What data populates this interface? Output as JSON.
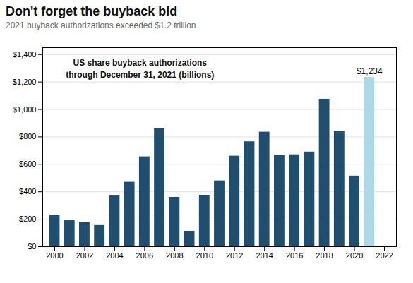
{
  "chart_data": {
    "type": "bar",
    "title": "Don't forget the buyback bid",
    "subtitle": "2021 buyback authorizations exceeded $1.2 trillion",
    "x": [
      2000,
      2001,
      2002,
      2003,
      2004,
      2005,
      2006,
      2007,
      2008,
      2009,
      2010,
      2011,
      2012,
      2013,
      2014,
      2015,
      2016,
      2017,
      2018,
      2019,
      2020,
      2021
    ],
    "values": [
      230,
      190,
      175,
      155,
      370,
      470,
      655,
      860,
      360,
      110,
      375,
      480,
      660,
      765,
      835,
      665,
      670,
      690,
      1075,
      840,
      515,
      1234
    ],
    "colors": [
      "#1f4e6e",
      "#1f4e6e",
      "#1f4e6e",
      "#1f4e6e",
      "#1f4e6e",
      "#1f4e6e",
      "#1f4e6e",
      "#1f4e6e",
      "#1f4e6e",
      "#1f4e6e",
      "#1f4e6e",
      "#1f4e6e",
      "#1f4e6e",
      "#1f4e6e",
      "#1f4e6e",
      "#1f4e6e",
      "#1f4e6e",
      "#1f4e6e",
      "#1f4e6e",
      "#1f4e6e",
      "#1f4e6e",
      "#add8e6"
    ],
    "annotations": [
      {
        "text": "$1,234",
        "x": 2021,
        "y": 1234
      },
      {
        "text": "US share buyback authorizations\nthrough December 31, 2021 (billions)"
      }
    ],
    "xlim": [
      1999.2,
      2022.8
    ],
    "xticks": [
      2000,
      2002,
      2004,
      2006,
      2008,
      2010,
      2012,
      2014,
      2016,
      2018,
      2020,
      2022
    ],
    "ylim": [
      0,
      1450
    ],
    "yticks": [
      {
        "value": 0,
        "label": "$0"
      },
      {
        "value": 200,
        "label": "$200"
      },
      {
        "value": 400,
        "label": "$400"
      },
      {
        "value": 600,
        "label": "$600"
      },
      {
        "value": 800,
        "label": "$800"
      },
      {
        "value": 1000,
        "label": "$1,000"
      },
      {
        "value": 1200,
        "label": "$1,200"
      },
      {
        "value": 1400,
        "label": "$1,400"
      }
    ],
    "grid": true
  }
}
